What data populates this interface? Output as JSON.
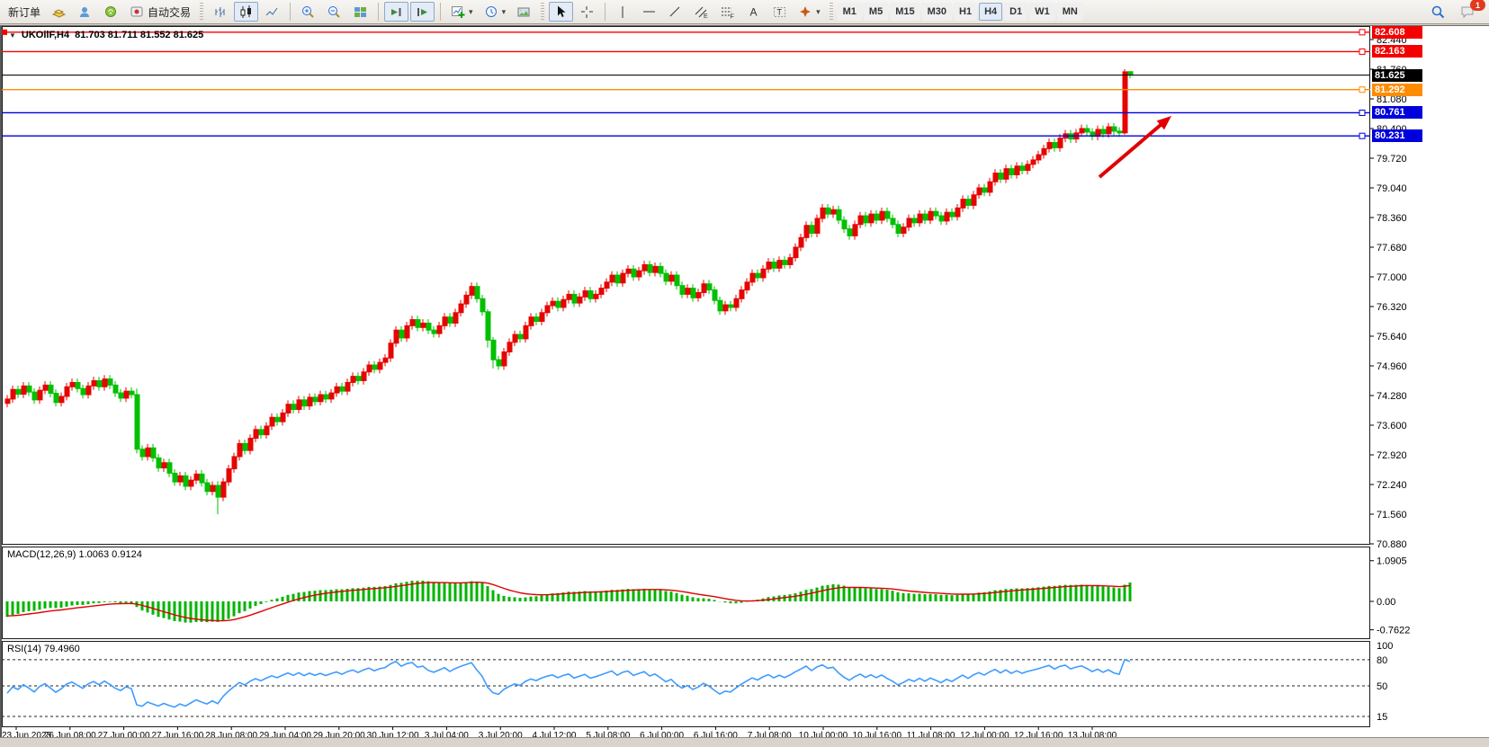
{
  "toolbar": {
    "new_order_label": "新订单",
    "autotrading_label": "自动交易",
    "timeframes": [
      "M1",
      "M5",
      "M15",
      "M30",
      "H1",
      "H4",
      "D1",
      "W1",
      "MN"
    ],
    "active_timeframe": "H4",
    "notification_count": "1",
    "icons": [
      "new-order",
      "layers",
      "community",
      "signals",
      "autotrading",
      "bar-chart",
      "candlestick-chart",
      "line-chart",
      "zoom-in",
      "zoom-out",
      "tile-windows",
      "auto-scroll",
      "chart-shift",
      "indicators",
      "periods",
      "templates",
      "cursor",
      "crosshair",
      "vertical-line",
      "horizontal-line",
      "trendline",
      "equidistant-channel",
      "fibonacci",
      "text",
      "text-label",
      "arrows",
      "search",
      "chat"
    ]
  },
  "chart": {
    "symbol_period": "UKOilF,H4",
    "ohlc_text": "81.703 81.711 81.552 81.625",
    "current_price": "81.625",
    "price_axis": {
      "ticks": [
        "82.440",
        "81.760",
        "81.080",
        "80.400",
        "79.720",
        "79.040",
        "78.360",
        "77.680",
        "77.000",
        "76.320",
        "75.640",
        "74.960",
        "74.280",
        "73.600",
        "72.920",
        "72.240",
        "71.560",
        "70.880"
      ]
    },
    "levels": [
      {
        "price": "82.608",
        "hex": "#f40000"
      },
      {
        "price": "82.163",
        "hex": "#f40000"
      },
      {
        "price": "81.292",
        "hex": "#ff8c00"
      },
      {
        "price": "80.761",
        "hex": "#0000dc"
      },
      {
        "price": "80.231",
        "hex": "#0000dc"
      }
    ],
    "time_axis": [
      "23 Jun 2023",
      "26 Jun 08:00",
      "27 Jun 00:00",
      "27 Jun 16:00",
      "28 Jun 08:00",
      "29 Jun 04:00",
      "29 Jun 20:00",
      "30 Jun 12:00",
      "3 Jul 04:00",
      "3 Jul 20:00",
      "4 Jul 12:00",
      "5 Jul 08:00",
      "6 Jul 00:00",
      "6 Jul 16:00",
      "7 Jul 08:00",
      "10 Jul 00:00",
      "10 Jul 16:00",
      "11 Jul 08:00",
      "12 Jul 00:00",
      "12 Jul 16:00",
      "13 Jul 08:00"
    ]
  },
  "indicators": {
    "macd": {
      "label": "MACD(12,26,9) 1.0063 0.9124",
      "scale": [
        "1.0905",
        "0.00",
        "-0.7622"
      ]
    },
    "rsi": {
      "label": "RSI(14) 79.4960",
      "scale": [
        "100",
        "80",
        "50",
        "15"
      ],
      "level_lines": [
        80,
        50,
        15
      ]
    }
  },
  "chart_data": {
    "type": "candlestick",
    "symbol": "UKOilF",
    "timeframe": "H4",
    "up_color": "#e60400",
    "down_color": "#00c000",
    "first_open": 74.1,
    "default_wick": 0.09,
    "closes": [
      74.2,
      74.42,
      74.31,
      74.5,
      74.36,
      74.18,
      74.4,
      74.52,
      74.33,
      74.12,
      74.26,
      74.48,
      74.58,
      74.44,
      74.3,
      74.5,
      74.62,
      74.48,
      74.66,
      74.52,
      74.34,
      74.22,
      74.38,
      74.3,
      73.05,
      72.88,
      73.08,
      72.85,
      72.62,
      72.74,
      72.5,
      72.3,
      72.44,
      72.2,
      72.34,
      72.48,
      72.28,
      72.08,
      72.22,
      71.95,
      72.3,
      72.6,
      72.88,
      73.18,
      73.02,
      73.3,
      73.5,
      73.38,
      73.58,
      73.78,
      73.68,
      73.88,
      74.08,
      73.96,
      74.18,
      74.04,
      74.24,
      74.14,
      74.3,
      74.2,
      74.34,
      74.48,
      74.38,
      74.58,
      74.72,
      74.62,
      74.82,
      74.98,
      74.88,
      75.04,
      75.14,
      75.48,
      75.78,
      75.6,
      75.88,
      76.02,
      75.84,
      75.94,
      75.78,
      75.7,
      75.88,
      76.08,
      75.94,
      76.18,
      76.38,
      76.58,
      76.78,
      76.5,
      76.2,
      75.55,
      75.1,
      74.96,
      75.28,
      75.5,
      75.68,
      75.58,
      75.88,
      76.08,
      75.98,
      76.18,
      76.34,
      76.44,
      76.3,
      76.48,
      76.6,
      76.4,
      76.54,
      76.68,
      76.5,
      76.6,
      76.74,
      76.88,
      77.04,
      76.86,
      77.08,
      77.18,
      77.0,
      77.14,
      77.28,
      77.1,
      77.24,
      77.08,
      76.9,
      77.04,
      76.8,
      76.6,
      76.74,
      76.52,
      76.64,
      76.84,
      76.7,
      76.46,
      76.22,
      76.36,
      76.3,
      76.5,
      76.7,
      76.88,
      77.08,
      76.98,
      77.18,
      77.34,
      77.2,
      77.38,
      77.28,
      77.44,
      77.68,
      77.9,
      78.18,
      78.0,
      78.34,
      78.58,
      78.44,
      78.54,
      78.3,
      78.1,
      77.94,
      78.2,
      78.4,
      78.24,
      78.44,
      78.3,
      78.5,
      78.34,
      78.2,
      78.0,
      78.14,
      78.34,
      78.24,
      78.44,
      78.3,
      78.5,
      78.4,
      78.28,
      78.48,
      78.38,
      78.58,
      78.78,
      78.64,
      78.88,
      79.04,
      78.94,
      79.18,
      79.38,
      79.24,
      79.48,
      79.34,
      79.54,
      79.44,
      79.58,
      79.68,
      79.8,
      79.94,
      80.08,
      79.96,
      80.18,
      80.28,
      80.16,
      80.3,
      80.4,
      80.32,
      80.22,
      80.38,
      80.28,
      80.44,
      80.34,
      80.3,
      81.7,
      81.625
    ],
    "overrides": {
      "24": [
        74.3,
        74.44,
        72.95,
        73.05
      ],
      "39": [
        72.22,
        72.32,
        71.56,
        71.95
      ],
      "89": [
        76.2,
        76.26,
        75.38,
        75.55
      ],
      "90": [
        75.55,
        75.62,
        74.9,
        75.1
      ],
      "207": [
        80.3,
        81.76,
        80.26,
        81.7
      ],
      "208": [
        81.703,
        81.711,
        81.552,
        81.625
      ]
    },
    "macd": {
      "fast": 12,
      "slow": 26,
      "signal": 9,
      "last_main": 1.0063,
      "last_signal": 0.9124,
      "scale_max": 1.0905,
      "scale_min": -0.7622,
      "hist_color": "#00b400",
      "signal_color": "#e00000"
    },
    "rsi": {
      "period": 14,
      "last": 79.496,
      "color": "#3e9bff",
      "levels": [
        80,
        50,
        15
      ]
    }
  },
  "annotation": {
    "arrow_color": "#e10000"
  }
}
